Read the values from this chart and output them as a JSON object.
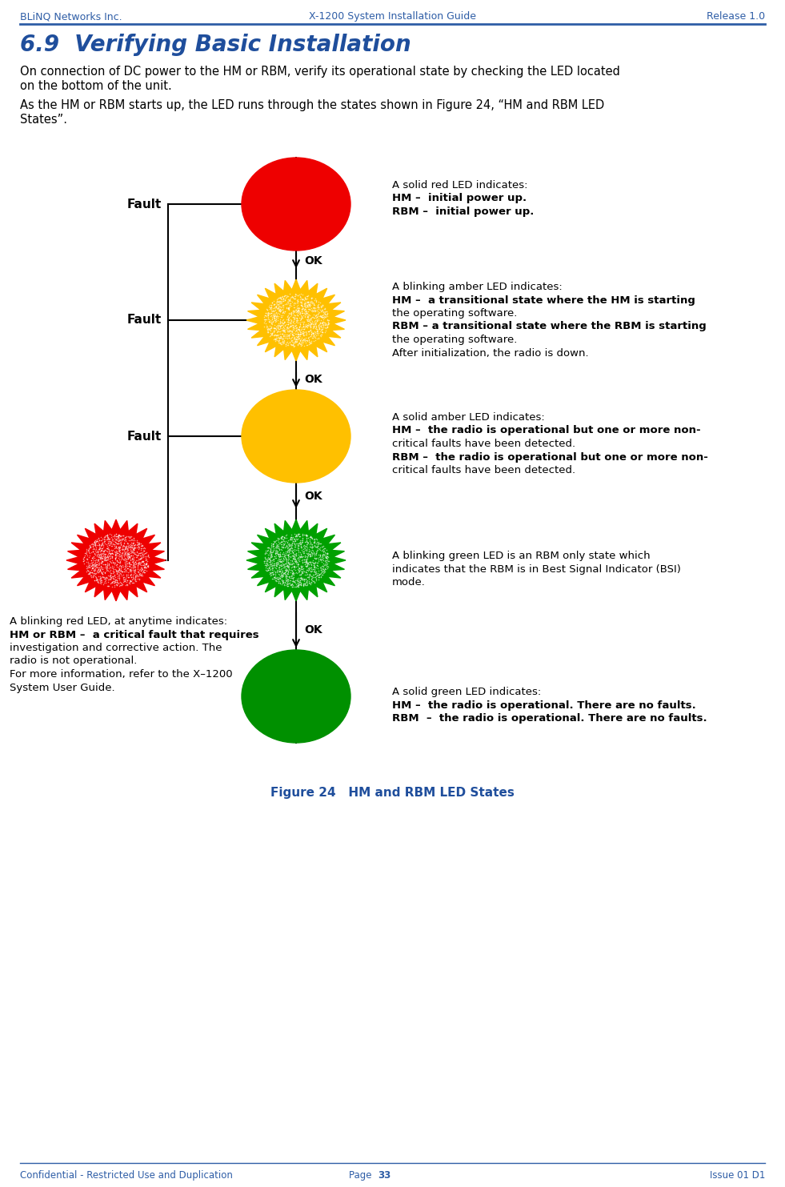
{
  "header_left": "BLiNQ Networks Inc.",
  "header_center": "X-1200 System Installation Guide",
  "header_right": "Release 1.0",
  "footer_left": "Confidential - Restricted Use and Duplication",
  "footer_center_label": "Page",
  "footer_center_num": "33",
  "footer_right": "Issue 01 D1",
  "section_title": "6.9  Verifying Basic Installation",
  "body1_l1": "On connection of DC power to the HM or RBM, verify its operational state by checking the LED located",
  "body1_l2": "on the bottom of the unit.",
  "body2_l1": "As the HM or RBM starts up, the LED runs through the states shown in Figure 24, “HM and RBM LED",
  "body2_l2": "States”.",
  "figure_caption": "Figure 24   HM and RBM LED States",
  "header_color": "#2E5DA6",
  "title_color": "#1F4E9C",
  "ann1": [
    [
      "A solid red LED indicates:",
      false
    ],
    [
      "HM –  initial power up.",
      true
    ],
    [
      "RBM –  initial power up.",
      true
    ]
  ],
  "ann2": [
    [
      "A blinking amber LED indicates:",
      false
    ],
    [
      "HM –  a transitional state where the HM is starting",
      true
    ],
    [
      "the operating software.",
      false
    ],
    [
      "RBM – a transitional state where the RBM is starting",
      true
    ],
    [
      "the operating software.",
      false
    ],
    [
      "After initialization, the radio is down.",
      false
    ]
  ],
  "ann3": [
    [
      "A solid amber LED indicates:",
      false
    ],
    [
      "HM –  the radio is operational but one or more non-",
      true
    ],
    [
      "critical faults have been detected.",
      false
    ],
    [
      "RBM –  the radio is operational but one or more non-",
      true
    ],
    [
      "critical faults have been detected.",
      false
    ]
  ],
  "ann4": [
    [
      "A blinking green LED is an RBM only state which",
      false
    ],
    [
      "indicates that the RBM is in Best Signal Indicator (BSI)",
      false
    ],
    [
      "mode.",
      false
    ]
  ],
  "ann5": [
    [
      "A solid green LED indicates:",
      false
    ],
    [
      "HM –  the radio is operational. There are no faults.",
      true
    ],
    [
      "RBM  –  the radio is operational. There are no faults.",
      true
    ]
  ],
  "ann_blink_red": [
    [
      "A blinking red LED, at anytime indicates:",
      false
    ],
    [
      "HM or RBM –  a critical fault that requires",
      true
    ],
    [
      "investigation and corrective action. The",
      false
    ],
    [
      "radio is not operational.",
      false
    ],
    [
      "For more information, refer to the X–1200",
      false
    ],
    [
      "System User Guide.",
      false
    ]
  ],
  "colors": {
    "solid_red": "#EE0000",
    "blink_amber": "#FFC000",
    "solid_amber": "#FFC000",
    "blink_green": "#00A000",
    "solid_green": "#009000",
    "blink_red": "#EE0000"
  }
}
